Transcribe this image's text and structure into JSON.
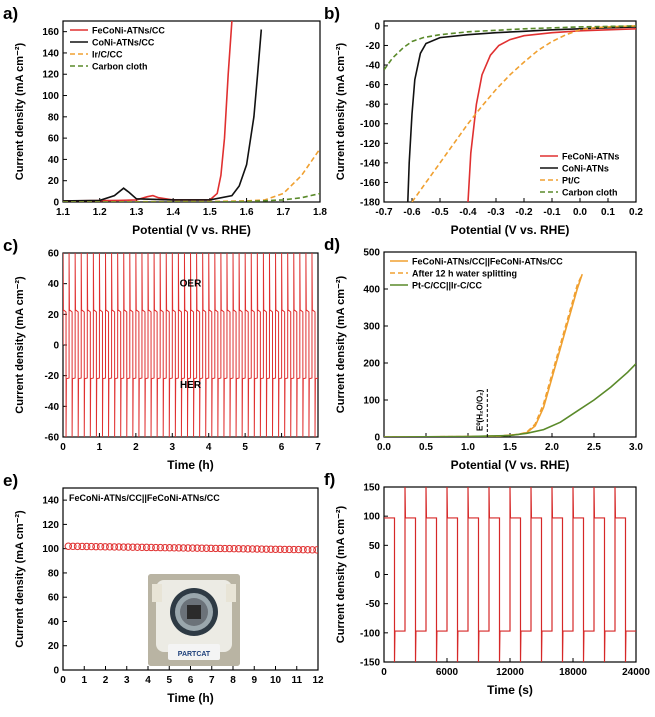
{
  "colors": {
    "red": "#e03030",
    "black": "#111111",
    "orange": "#f0a030",
    "green": "#5a8a2a",
    "dred": "#d62828"
  },
  "chart_data": [
    {
      "panel": "a)",
      "type": "line",
      "xlabel": "Potential (V vs. RHE)",
      "ylabel": "Current density (mA cm⁻²)",
      "xlim": [
        1.1,
        1.8
      ],
      "ylim": [
        0,
        170
      ],
      "xticks": [
        "1.1",
        "1.2",
        "1.3",
        "1.4",
        "1.5",
        "1.6",
        "1.7",
        "1.8"
      ],
      "yticks": [
        "0",
        "20",
        "40",
        "60",
        "80",
        "100",
        "120",
        "140",
        "160"
      ],
      "legend_position": "top-left",
      "series": [
        {
          "name": "FeCoNi-ATNs/CC",
          "color": "#e03030",
          "dash": "solid",
          "x": [
            1.1,
            1.25,
            1.3,
            1.33,
            1.345,
            1.36,
            1.4,
            1.5,
            1.52,
            1.53,
            1.54,
            1.55,
            1.56
          ],
          "y": [
            1,
            1.5,
            2,
            5,
            6,
            4,
            2,
            2,
            8,
            25,
            60,
            120,
            170
          ]
        },
        {
          "name": "CoNi-ATNs/CC",
          "color": "#111111",
          "dash": "solid",
          "x": [
            1.1,
            1.2,
            1.24,
            1.265,
            1.28,
            1.3,
            1.4,
            1.5,
            1.56,
            1.58,
            1.6,
            1.62,
            1.63,
            1.64
          ],
          "y": [
            1,
            1.5,
            6,
            13,
            9,
            3,
            2,
            2,
            6,
            15,
            35,
            80,
            120,
            162
          ]
        },
        {
          "name": "Ir/C/CC",
          "color": "#f0a030",
          "dash": "dash",
          "x": [
            1.1,
            1.5,
            1.6,
            1.65,
            1.7,
            1.75,
            1.8
          ],
          "y": [
            0,
            0.5,
            1,
            2,
            8,
            25,
            50
          ]
        },
        {
          "name": "Carbon cloth",
          "color": "#5a8a2a",
          "dash": "dash",
          "x": [
            1.1,
            1.5,
            1.6,
            1.7,
            1.75,
            1.8
          ],
          "y": [
            0,
            0,
            0.5,
            2,
            4,
            8
          ]
        }
      ]
    },
    {
      "panel": "b)",
      "type": "line",
      "xlabel": "Potential (V vs. RHE)",
      "ylabel": "Current density (mA cm⁻²)",
      "xlim": [
        -0.7,
        0.2
      ],
      "ylim": [
        -180,
        5
      ],
      "xticks": [
        "-0.7",
        "-0.6",
        "-0.5",
        "-0.4",
        "-0.3",
        "-0.2",
        "-0.1",
        "0.0",
        "0.1",
        "0.2"
      ],
      "yticks": [
        "0",
        "-20",
        "-40",
        "-60",
        "-80",
        "-100",
        "-120",
        "-140",
        "-160",
        "-180"
      ],
      "legend_position": "bottom-right",
      "series": [
        {
          "name": "FeCoNi-ATNs",
          "color": "#e03030",
          "dash": "solid",
          "x": [
            -0.4,
            -0.39,
            -0.37,
            -0.35,
            -0.32,
            -0.29,
            -0.25,
            -0.2,
            -0.1,
            0,
            0.1,
            0.2
          ],
          "y": [
            -180,
            -130,
            -80,
            -50,
            -30,
            -20,
            -14,
            -10,
            -7,
            -5,
            -4,
            -3
          ]
        },
        {
          "name": "CoNi-ATNs",
          "color": "#111111",
          "dash": "solid",
          "x": [
            -0.615,
            -0.61,
            -0.6,
            -0.59,
            -0.57,
            -0.55,
            -0.5,
            -0.4,
            -0.3,
            -0.2,
            -0.1,
            0,
            0.1,
            0.2
          ],
          "y": [
            -180,
            -140,
            -90,
            -55,
            -28,
            -18,
            -12,
            -9,
            -7,
            -5.5,
            -4,
            -3,
            -2,
            -1
          ]
        },
        {
          "name": "Pt/C",
          "color": "#f0a030",
          "dash": "dash",
          "x": [
            -0.6,
            -0.55,
            -0.5,
            -0.45,
            -0.4,
            -0.35,
            -0.3,
            -0.25,
            -0.2,
            -0.15,
            -0.1,
            -0.05,
            0,
            0.05,
            0.1,
            0.2
          ],
          "y": [
            -180,
            -160,
            -140,
            -120,
            -100,
            -82,
            -65,
            -50,
            -37,
            -25,
            -16,
            -9,
            -4,
            -2,
            -1,
            0
          ]
        },
        {
          "name": "Carbon cloth",
          "color": "#5a8a2a",
          "dash": "dash",
          "x": [
            -0.7,
            -0.67,
            -0.63,
            -0.6,
            -0.56,
            -0.5,
            -0.4,
            -0.2,
            0,
            0.2
          ],
          "y": [
            -45,
            -33,
            -22,
            -16,
            -12,
            -9,
            -6,
            -3,
            -1,
            0
          ]
        }
      ]
    },
    {
      "panel": "c)",
      "type": "line",
      "xlabel": "Time (h)",
      "ylabel": "Current density (mA cm⁻²)",
      "xlim": [
        0,
        7
      ],
      "ylim": [
        -60,
        60
      ],
      "xticks": [
        "0",
        "1",
        "2",
        "3",
        "4",
        "5",
        "6",
        "7"
      ],
      "yticks": [
        "-60",
        "-40",
        "-20",
        "0",
        "20",
        "40",
        "60"
      ],
      "annotations": [
        "OER",
        "HER"
      ],
      "series": [
        {
          "name": "",
          "color": "#e03030",
          "cycles": 42,
          "period_h": 0.1667,
          "high": 23,
          "low": -22,
          "spike_high": 60,
          "spike_low": -60
        }
      ]
    },
    {
      "panel": "d)",
      "type": "line",
      "xlabel": "Potential (V vs. RHE)",
      "ylabel": "Current density (mA cm⁻²)",
      "xlim": [
        0,
        3
      ],
      "ylim": [
        0,
        500
      ],
      "xticks": [
        "0.0",
        "0.5",
        "1.0",
        "1.5",
        "2.0",
        "2.5",
        "3.0"
      ],
      "yticks": [
        "0",
        "100",
        "200",
        "300",
        "400",
        "500"
      ],
      "annotation": "E⁰(H₂O/O₂)",
      "annotation_x": 1.23,
      "legend_position": "top-left",
      "series": [
        {
          "name": "FeCoNi-ATNs/CC||FeCoNi-ATNs/CC",
          "color": "#f0a030",
          "dash": "solid",
          "x": [
            0,
            1,
            1.4,
            1.6,
            1.7,
            1.8,
            1.9,
            2.0,
            2.1,
            2.2,
            2.3,
            2.36
          ],
          "y": [
            0,
            1,
            3,
            7,
            12,
            30,
            80,
            160,
            240,
            320,
            400,
            440
          ]
        },
        {
          "name": "After 12 h water splitting",
          "color": "#f0a030",
          "dash": "dash",
          "x": [
            0,
            1,
            1.4,
            1.6,
            1.7,
            1.8,
            1.9,
            2.0,
            2.1,
            2.2,
            2.3,
            2.36
          ],
          "y": [
            0,
            1,
            3,
            7,
            13,
            35,
            90,
            170,
            250,
            330,
            410,
            440
          ]
        },
        {
          "name": "Pt-C/CC||Ir-C/CC",
          "color": "#5a8a2a",
          "dash": "solid",
          "x": [
            0,
            1,
            1.5,
            1.7,
            1.9,
            2.1,
            2.3,
            2.5,
            2.7,
            2.9,
            3.0
          ],
          "y": [
            0,
            1,
            4,
            10,
            20,
            40,
            70,
            100,
            135,
            175,
            198
          ]
        }
      ]
    },
    {
      "panel": "e)",
      "type": "scatter",
      "xlabel": "Time (h)",
      "ylabel": "Current density (mA cm⁻²)",
      "xlim": [
        0,
        12
      ],
      "ylim": [
        0,
        150
      ],
      "xticks": [
        "0",
        "1",
        "2",
        "3",
        "4",
        "5",
        "6",
        "7",
        "8",
        "9",
        "10",
        "11",
        "12"
      ],
      "yticks": [
        "0",
        "20",
        "40",
        "60",
        "80",
        "100",
        "120",
        "140"
      ],
      "label": "FeCoNi-ATNs/CC||FeCoNi-ATNs/CC",
      "series": [
        {
          "name": "",
          "color": "#e03030",
          "start_y": 102,
          "end_y": 99,
          "points": 55
        }
      ]
    },
    {
      "panel": "f)",
      "type": "line",
      "xlabel": "Time (s)",
      "ylabel": "Current density (mA cm⁻²)",
      "xlim": [
        0,
        24000
      ],
      "ylim": [
        -150,
        150
      ],
      "xticks": [
        "0",
        "6000",
        "12000",
        "18000",
        "24000"
      ],
      "yticks": [
        "-150",
        "-100",
        "-50",
        "0",
        "50",
        "100",
        "150"
      ],
      "series": [
        {
          "name": "",
          "color": "#d62828",
          "cycles": 12,
          "period_s": 2000,
          "high": 97,
          "low": -97,
          "spike": 150
        }
      ]
    }
  ],
  "photo": {
    "brand": "PARTCAT"
  }
}
